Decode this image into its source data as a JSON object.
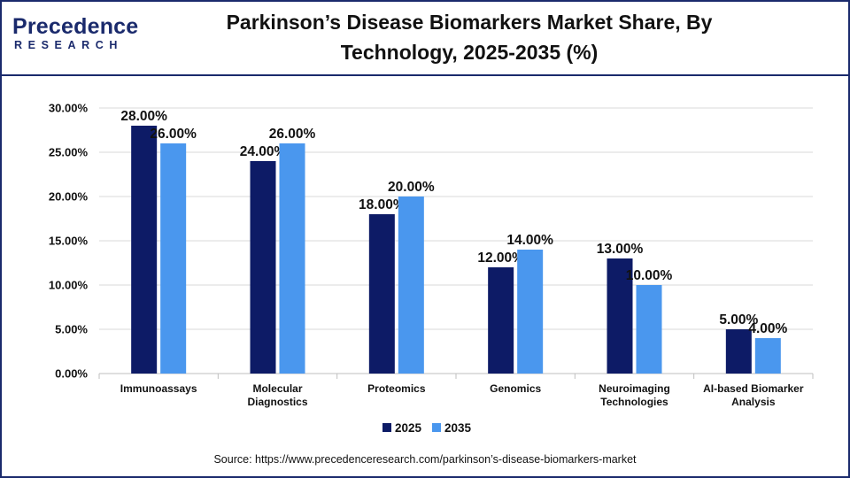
{
  "header": {
    "logo_main": "Precedence",
    "logo_sub": "RESEARCH",
    "title_line1": "Parkinson’s Disease Biomarkers Market Share, By",
    "title_line2": "Technology, 2025-2035 (%)"
  },
  "footer": {
    "source": "Source: https://www.precedenceresearch.com/parkinson’s-disease-biomarkers-market"
  },
  "colors": {
    "brand": "#1a2a6c",
    "series_2025": "#0d1b66",
    "series_2035": "#4a97ee",
    "gridline": "#d9d9d9"
  },
  "chart_data": {
    "type": "bar",
    "title": "Parkinson’s Disease Biomarkers Market Share, By Technology, 2025-2035 (%)",
    "categories": [
      [
        "Immunoassays"
      ],
      [
        "Molecular",
        "Diagnostics"
      ],
      [
        "Proteomics"
      ],
      [
        "Genomics"
      ],
      [
        "Neuroimaging",
        "Technologies"
      ],
      [
        "AI-based Biomarker",
        "Analysis"
      ]
    ],
    "series": [
      {
        "name": "2025",
        "values": [
          28,
          24,
          18,
          12,
          13,
          5
        ],
        "labels": [
          "28.00%",
          "24.00%",
          "18.00%",
          "12.00%",
          "13.00%",
          "5.00%"
        ]
      },
      {
        "name": "2035",
        "values": [
          26,
          26,
          20,
          14,
          10,
          4
        ],
        "labels": [
          "26.00%",
          "26.00%",
          "20.00%",
          "14.00%",
          "10.00%",
          "4.00%"
        ]
      }
    ],
    "yticks": [
      0,
      5,
      10,
      15,
      20,
      25,
      30
    ],
    "ytick_labels": [
      "0.00%",
      "5.00%",
      "10.00%",
      "15.00%",
      "20.00%",
      "25.00%",
      "30.00%"
    ],
    "ylim": [
      0,
      30
    ],
    "xlabel": "",
    "ylabel": "",
    "grid": true,
    "legend_position": "bottom-center"
  }
}
